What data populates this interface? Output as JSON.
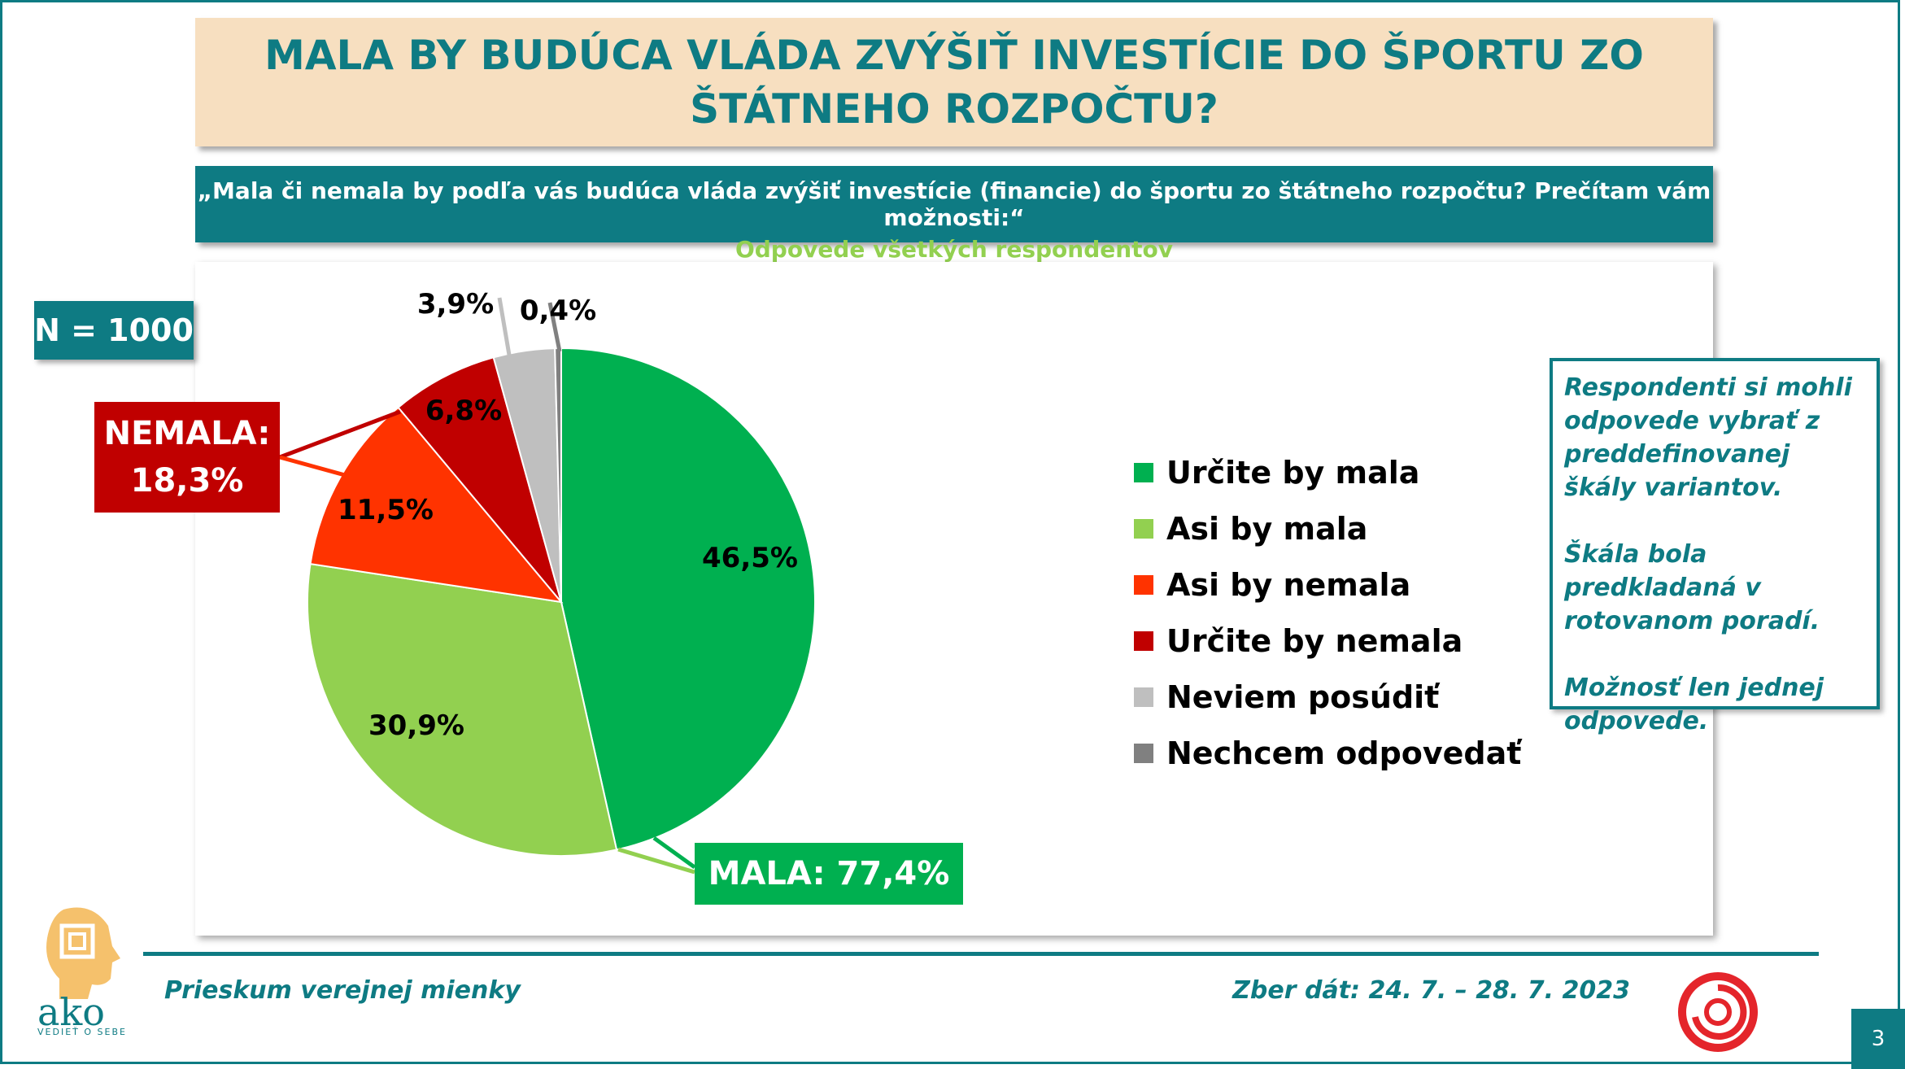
{
  "title": "MALA BY BUDÚCA VLÁDA ZVÝŠIŤ INVESTÍCIE DO ŠPORTU ZO ŠTÁTNEHO ROZPOČTU?",
  "question": "„Mala či nemala by podľa vás budúca vláda zvýšiť investície (financie) do športu zo štátneho rozpočtu? Prečítam vám možnosti:“",
  "subquestion": "Odpovede všetkých respondentov",
  "sample": "N = 1000",
  "groups": {
    "nemala_label": "NEMALA:",
    "nemala_value": "18,3%",
    "mala_text": "MALA: 77,4%"
  },
  "chart_data": {
    "type": "pie",
    "slices": [
      {
        "name": "Určite by mala",
        "value": 46.5,
        "label": "46,5%",
        "color": "#00b050"
      },
      {
        "name": "Asi by mala",
        "value": 30.9,
        "label": "30,9%",
        "color": "#92d050"
      },
      {
        "name": "Asi by nemala",
        "value": 11.5,
        "label": "11,5%",
        "color": "#ff3300"
      },
      {
        "name": "Určite by nemala",
        "value": 6.8,
        "label": "6,8%",
        "color": "#c00000"
      },
      {
        "name": "Neviem posúdiť",
        "value": 3.9,
        "label": "3,9%",
        "color": "#bfbfbf"
      },
      {
        "name": "Nechcem odpovedať",
        "value": 0.4,
        "label": "0,4%",
        "color": "#808080"
      }
    ],
    "legend_position": "right"
  },
  "note": {
    "p1": "Respondenti si mohli odpovede vybrať z preddefinovanej škály variantov.",
    "p2": "Škála bola predkladaná v rotovanom poradí.",
    "p3": "Možnosť len jednej odpovede."
  },
  "footer": {
    "left": "Prieskum verejnej mienky",
    "right": "Zber dát: 24. 7. – 28. 7. 2023",
    "page": "3"
  },
  "logo_text": "ako",
  "logo_tagline": "VEDIEŤ O SEBE"
}
